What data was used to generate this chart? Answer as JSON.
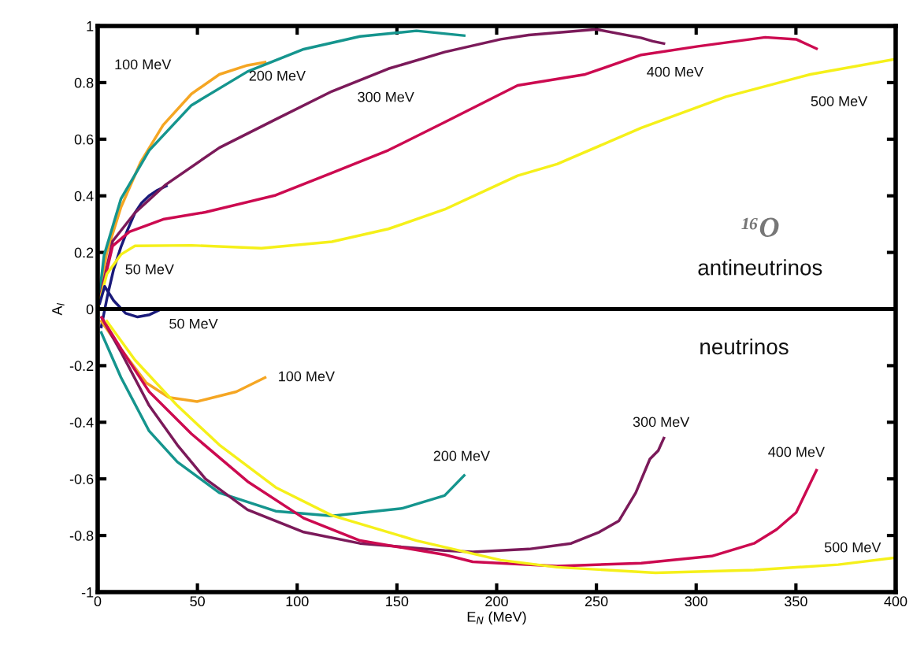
{
  "chart_data": {
    "type": "line",
    "xlabel": "E$_{N}$ (MeV)",
    "ylabel": "A$_{l}$",
    "xlim": [
      0,
      400
    ],
    "ylim": [
      -1,
      1
    ],
    "xticks": [
      0,
      50,
      100,
      150,
      200,
      250,
      300,
      350,
      400
    ],
    "yticks": [
      -1,
      -0.8,
      -0.6,
      -0.4,
      -0.2,
      0,
      0.2,
      0.4,
      0.6,
      0.8,
      1
    ],
    "grid": false,
    "legend": false,
    "marker": "none",
    "line_style": "solid",
    "ref_lines": [
      {
        "axis": "y",
        "value": 0,
        "color": "#000000"
      }
    ],
    "series": [
      {
        "name": "50 MeV",
        "color": "#1a1a7a",
        "x": [
          1.8,
          5,
          8,
          11.7,
          15,
          18.7,
          22,
          25.7,
          30,
          34.4
        ],
        "values": [
          -0.063,
          0.05,
          0.14,
          0.22,
          0.28,
          0.34,
          0.375,
          0.4,
          0.42,
          0.435
        ]
      },
      {
        "name": "100 MeV",
        "color": "#f5a623",
        "x": [
          0,
          1,
          4.6,
          11.7,
          21.6,
          32.8,
          47,
          61,
          75.1,
          83.9
        ],
        "values": [
          0,
          0.06,
          0.2,
          0.36,
          0.52,
          0.65,
          0.76,
          0.829,
          0.861,
          0.872
        ]
      },
      {
        "name": "200 MeV",
        "color": "#15958e",
        "x": [
          0,
          3.2,
          11.7,
          25.8,
          47,
          75.1,
          103.3,
          131.5,
          159.8,
          183.7
        ],
        "values": [
          0,
          0.19,
          0.39,
          0.56,
          0.72,
          0.839,
          0.918,
          0.963,
          0.983,
          0.966
        ]
      },
      {
        "name": "300 MeV",
        "color": "#7b1a5a",
        "x": [
          0,
          7.5,
          18.7,
          34.2,
          61,
          89.2,
          117.4,
          145.7,
          173.9,
          202,
          216,
          250,
          272.5,
          278.2,
          283.8
        ],
        "values": [
          0,
          0.24,
          0.34,
          0.44,
          0.57,
          0.67,
          0.769,
          0.849,
          0.908,
          0.953,
          0.968,
          0.988,
          0.958,
          0.946,
          0.938
        ]
      },
      {
        "name": "400 MeV",
        "color": "#cc0a50",
        "x": [
          0,
          7.5,
          15.9,
          32.8,
          54,
          89.2,
          117.4,
          145.7,
          173.9,
          210.5,
          244.4,
          272.5,
          300.8,
          334.6,
          350.1,
          360.3
        ],
        "values": [
          0,
          0.223,
          0.273,
          0.317,
          0.342,
          0.402,
          0.481,
          0.561,
          0.66,
          0.79,
          0.829,
          0.898,
          0.928,
          0.96,
          0.953,
          0.92
        ]
      },
      {
        "name": "500 MeV",
        "color": "#f5f01a",
        "x": [
          0,
          4.6,
          11.7,
          18.7,
          47,
          82.1,
          117.4,
          145.7,
          173.9,
          210.5,
          230.3,
          272.5,
          314.9,
          357.2,
          400
        ],
        "values": [
          0,
          0.124,
          0.193,
          0.223,
          0.225,
          0.215,
          0.238,
          0.283,
          0.352,
          0.471,
          0.512,
          0.64,
          0.75,
          0.829,
          0.883
        ]
      },
      {
        "name": "50 MeV",
        "color": "#1a1a7a",
        "x": [
          1,
          3.5,
          8,
          14,
          20,
          26,
          32
        ],
        "values": [
          0.02,
          0.08,
          0.03,
          -0.015,
          -0.028,
          -0.02,
          0
        ]
      },
      {
        "name": "100 MeV",
        "color": "#f5a623",
        "x": [
          1.8,
          11.7,
          24.4,
          35.7,
          49.8,
          69.5,
          83.9
        ],
        "values": [
          -0.043,
          -0.142,
          -0.261,
          -0.312,
          -0.327,
          -0.292,
          -0.242
        ]
      },
      {
        "name": "200 MeV",
        "color": "#15958e",
        "x": [
          1.8,
          11.7,
          25.8,
          39.9,
          61,
          89.2,
          117.4,
          152.7,
          173.9,
          183.7
        ],
        "values": [
          -0.083,
          -0.242,
          -0.431,
          -0.54,
          -0.649,
          -0.714,
          -0.731,
          -0.704,
          -0.659,
          -0.588
        ]
      },
      {
        "name": "300 MeV",
        "color": "#7b1a5a",
        "x": [
          2,
          11.7,
          25.8,
          39.9,
          54,
          75.1,
          103.3,
          131.5,
          173.9,
          188,
          216.2,
          237.3,
          251.4,
          261.3,
          269.7,
          276.8,
          281,
          283.8
        ],
        "values": [
          -0.03,
          -0.152,
          -0.341,
          -0.48,
          -0.6,
          -0.709,
          -0.788,
          -0.828,
          -0.853,
          -0.858,
          -0.848,
          -0.828,
          -0.788,
          -0.748,
          -0.649,
          -0.53,
          -0.5,
          -0.456
        ]
      },
      {
        "name": "400 MeV",
        "color": "#cc0a50",
        "x": [
          2,
          11.7,
          25.8,
          47,
          75.1,
          103.3,
          131.5,
          173.9,
          188,
          230.3,
          272.5,
          307.8,
          329,
          340.3,
          350.1,
          360.3
        ],
        "values": [
          -0.03,
          -0.14,
          -0.292,
          -0.441,
          -0.609,
          -0.739,
          -0.818,
          -0.868,
          -0.893,
          -0.908,
          -0.898,
          -0.873,
          -0.828,
          -0.779,
          -0.719,
          -0.57
        ]
      },
      {
        "name": "500 MeV",
        "color": "#f5f01a",
        "x": [
          4.6,
          18.7,
          39.9,
          61,
          89.2,
          117.4,
          159.8,
          202,
          230.3,
          279.6,
          329,
          371.2,
          400
        ],
        "values": [
          -0.043,
          -0.18,
          -0.341,
          -0.48,
          -0.63,
          -0.729,
          -0.818,
          -0.887,
          -0.912,
          -0.932,
          -0.922,
          -0.903,
          -0.878
        ]
      }
    ],
    "annotations": [
      "¹⁶O",
      "antineutrinos",
      "neutrinos"
    ]
  }
}
